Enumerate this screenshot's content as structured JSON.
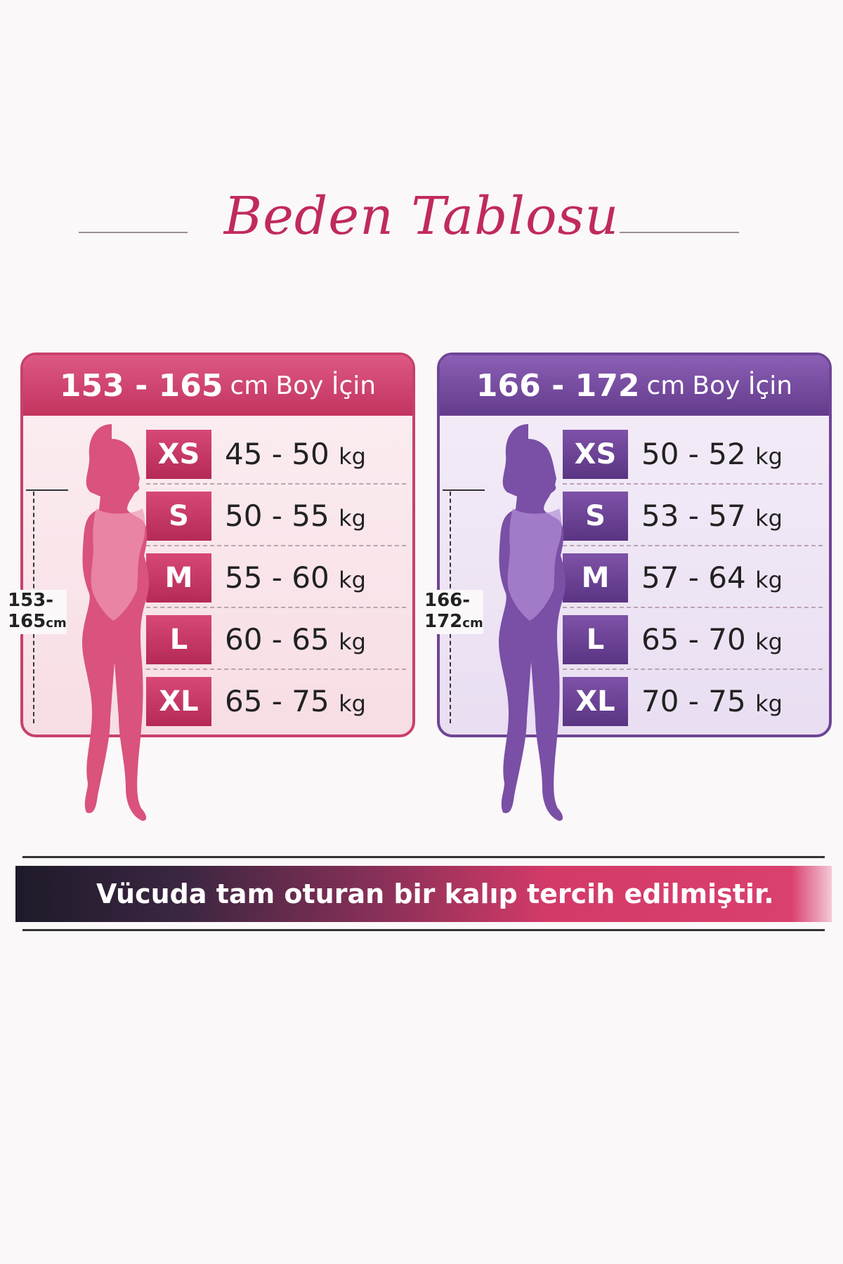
{
  "title": "Beden Tablosu",
  "colors": {
    "pink": "#c8416b",
    "purple": "#6e4596",
    "title": "#c02a5e"
  },
  "cards": [
    {
      "range": "153 - 165",
      "unit": "cm",
      "suffix": "Boy İçin",
      "height_label": "153-",
      "height_label2": "165",
      "height_unit": "cm",
      "rows": [
        {
          "size": "XS",
          "weight": "45 - 50",
          "unit": "kg"
        },
        {
          "size": "S",
          "weight": "50 - 55",
          "unit": "kg"
        },
        {
          "size": "M",
          "weight": "55 - 60",
          "unit": "kg"
        },
        {
          "size": "L",
          "weight": "60 - 65",
          "unit": "kg"
        },
        {
          "size": "XL",
          "weight": "65 - 75",
          "unit": "kg"
        }
      ]
    },
    {
      "range": "166 - 172",
      "unit": "cm",
      "suffix": "Boy İçin",
      "height_label": "166-",
      "height_label2": "172",
      "height_unit": "cm",
      "rows": [
        {
          "size": "XS",
          "weight": "50 - 52",
          "unit": "kg"
        },
        {
          "size": "S",
          "weight": "53 - 57",
          "unit": "kg"
        },
        {
          "size": "M",
          "weight": "57 - 64",
          "unit": "kg"
        },
        {
          "size": "L",
          "weight": "65 - 70",
          "unit": "kg"
        },
        {
          "size": "XL",
          "weight": "70 - 75",
          "unit": "kg"
        }
      ]
    }
  ],
  "banner": {
    "text": "Vücuda tam oturan bir kalıp tercih edilmiştir."
  }
}
